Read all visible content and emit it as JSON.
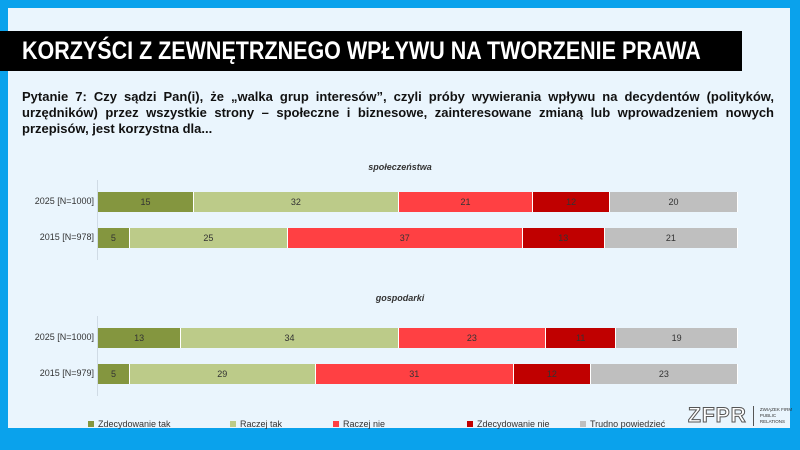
{
  "title": "KORZYŚCI Z ZEWNĘTRZNEGO WPŁYWU NA TWORZENIE PRAWA",
  "question": "Pytanie 7: Czy sądzi Pan(i), że „walka grup interesów”, czyli próby wywierania wpływu na decydentów (polityków, urzędników) przez wszystkie strony – społeczne i biznesowe, zainteresowane zmianą lub wprowadzeniem nowych przepisów, jest korzystna dla...",
  "logo": {
    "text": "ZFPR",
    "subtitle": "ZWIĄZEK FIRM PUBLIC RELATIONS"
  },
  "chart_data": {
    "type": "bar",
    "stacked": true,
    "orientation": "horizontal",
    "xlim": [
      0,
      100
    ],
    "legend_position": "bottom",
    "series_names": [
      "Zdecydowanie tak",
      "Raczej tak",
      "Raczej nie",
      "Zdecydowanie nie",
      "Trudno powiedzieć"
    ],
    "colors": [
      "#84963f",
      "#bccb89",
      "#ff4043",
      "#c00000",
      "#bfbfbf"
    ],
    "groups": [
      {
        "title": "społeczeństwa",
        "rows": [
          {
            "label": "2025 [N=1000]",
            "values": [
              15,
              32,
              21,
              12,
              20
            ]
          },
          {
            "label": "2015 [N=978]",
            "values": [
              5,
              25,
              37,
              13,
              21
            ]
          }
        ]
      },
      {
        "title": "gospodarki",
        "rows": [
          {
            "label": "2025 [N=1000]",
            "values": [
              13,
              34,
              23,
              11,
              19
            ]
          },
          {
            "label": "2015 [N=979]",
            "values": [
              5,
              29,
              31,
              12,
              23
            ]
          }
        ]
      }
    ]
  }
}
